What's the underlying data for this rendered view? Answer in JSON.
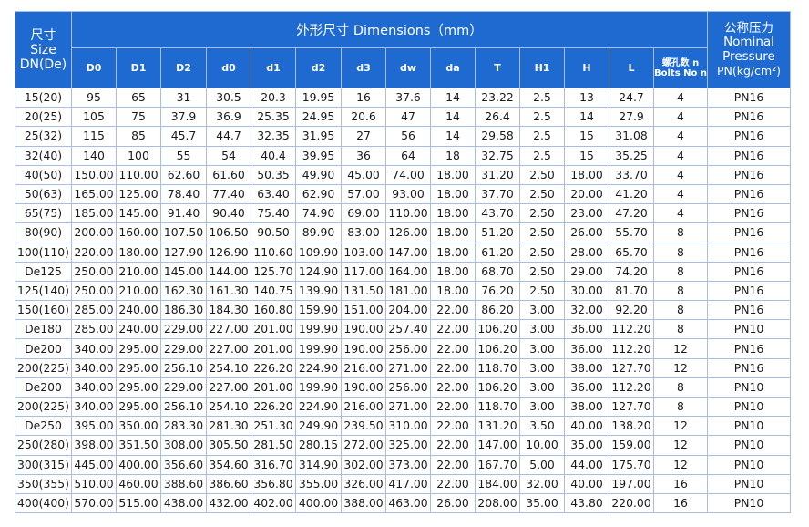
{
  "header": {
    "size": [
      "尺寸",
      "Size",
      "DN(De)"
    ],
    "dimensions": "外形尺寸 Dimensions（mm）",
    "pressure": [
      "公称压力",
      "Nominal",
      "Pressure",
      "PN(kg/cm²)"
    ],
    "columns": [
      "D0",
      "D1",
      "D2",
      "d0",
      "d1",
      "d2",
      "d3",
      "dw",
      "da",
      "T",
      "H1",
      "H",
      "L"
    ],
    "bolts": [
      "螺孔数 n",
      "Bolts No n"
    ]
  },
  "rows": [
    [
      "15(20)",
      "95",
      "65",
      "31",
      "30.5",
      "20.3",
      "19.95",
      "16",
      "37.6",
      "14",
      "23.22",
      "2.5",
      "13",
      "24.7",
      "4",
      "PN16"
    ],
    [
      "20(25)",
      "105",
      "75",
      "37.9",
      "36.9",
      "25.35",
      "24.95",
      "20.6",
      "47",
      "14",
      "26.4",
      "2.5",
      "14",
      "27.9",
      "4",
      "PN16"
    ],
    [
      "25(32)",
      "115",
      "85",
      "45.7",
      "44.7",
      "32.35",
      "31.95",
      "27",
      "56",
      "14",
      "29.58",
      "2.5",
      "15",
      "31.08",
      "4",
      "PN16"
    ],
    [
      "32(40)",
      "140",
      "100",
      "55",
      "54",
      "40.4",
      "39.95",
      "36",
      "64",
      "18",
      "32.75",
      "2.5",
      "15",
      "35.25",
      "4",
      "PN16"
    ],
    [
      "40(50)",
      "150.00",
      "110.00",
      "62.60",
      "61.60",
      "50.35",
      "49.90",
      "45.00",
      "74.00",
      "18.00",
      "31.20",
      "2.50",
      "18.00",
      "33.70",
      "4",
      "PN16"
    ],
    [
      "50(63)",
      "165.00",
      "125.00",
      "78.40",
      "77.40",
      "63.40",
      "62.90",
      "57.00",
      "93.00",
      "18.00",
      "37.70",
      "2.50",
      "20.00",
      "41.20",
      "4",
      "PN16"
    ],
    [
      "65(75)",
      "185.00",
      "145.00",
      "91.40",
      "90.40",
      "75.40",
      "74.90",
      "69.00",
      "110.00",
      "18.00",
      "43.70",
      "2.50",
      "23.00",
      "47.20",
      "4",
      "PN16"
    ],
    [
      "80(90)",
      "200.00",
      "160.00",
      "107.50",
      "106.50",
      "90.50",
      "89.90",
      "83.00",
      "126.00",
      "18.00",
      "51.20",
      "2.50",
      "26.00",
      "55.70",
      "8",
      "PN16"
    ],
    [
      "100(110)",
      "220.00",
      "180.00",
      "127.90",
      "126.90",
      "110.60",
      "109.90",
      "103.00",
      "147.00",
      "18.00",
      "61.20",
      "2.50",
      "28.00",
      "65.70",
      "8",
      "PN16"
    ],
    [
      "De125",
      "250.00",
      "210.00",
      "145.00",
      "144.00",
      "125.70",
      "124.90",
      "117.00",
      "164.00",
      "18.00",
      "68.70",
      "2.50",
      "29.00",
      "74.20",
      "8",
      "PN16"
    ],
    [
      "125(140)",
      "250.00",
      "210.00",
      "162.30",
      "161.30",
      "140.75",
      "139.90",
      "131.50",
      "181.00",
      "18.00",
      "76.20",
      "2.50",
      "30.00",
      "81.70",
      "8",
      "PN16"
    ],
    [
      "150(160)",
      "285.00",
      "240.00",
      "186.30",
      "184.30",
      "160.80",
      "159.90",
      "151.00",
      "204.00",
      "22.00",
      "86.20",
      "3.00",
      "32.00",
      "92.20",
      "8",
      "PN16"
    ],
    [
      "De180",
      "285.00",
      "240.00",
      "229.00",
      "227.00",
      "201.00",
      "199.90",
      "190.00",
      "257.40",
      "22.00",
      "106.20",
      "3.00",
      "36.00",
      "112.20",
      "8",
      "PN10"
    ],
    [
      "De200",
      "340.00",
      "295.00",
      "229.00",
      "227.00",
      "201.00",
      "199.90",
      "190.00",
      "256.00",
      "22.00",
      "106.20",
      "3.00",
      "36.00",
      "112.20",
      "12",
      "PN16"
    ],
    [
      "200(225)",
      "340.00",
      "295.00",
      "256.10",
      "254.10",
      "226.20",
      "224.90",
      "216.00",
      "271.00",
      "22.00",
      "118.70",
      "3.00",
      "38.00",
      "127.70",
      "12",
      "PN16"
    ],
    [
      "De200",
      "340.00",
      "295.00",
      "229.00",
      "227.00",
      "201.00",
      "199.90",
      "190.00",
      "256.00",
      "22.00",
      "106.20",
      "3.00",
      "36.00",
      "112.20",
      "8",
      "PN10"
    ],
    [
      "200(225)",
      "340.00",
      "295.00",
      "256.10",
      "254.10",
      "226.20",
      "224.90",
      "216.00",
      "271.00",
      "22.00",
      "118.70",
      "3.00",
      "38.00",
      "127.70",
      "8",
      "PN10"
    ],
    [
      "De250",
      "395.00",
      "350.00",
      "283.30",
      "281.30",
      "251.30",
      "249.90",
      "239.50",
      "310.00",
      "22.00",
      "131.20",
      "3.50",
      "40.00",
      "138.20",
      "12",
      "PN10"
    ],
    [
      "250(280)",
      "398.00",
      "351.50",
      "308.00",
      "305.50",
      "281.50",
      "280.15",
      "272.00",
      "325.00",
      "22.00",
      "147.00",
      "10.00",
      "35.00",
      "159.00",
      "12",
      "PN10"
    ],
    [
      "300(315)",
      "445.00",
      "400.00",
      "356.60",
      "354.60",
      "316.70",
      "314.90",
      "302.00",
      "373.00",
      "22.00",
      "167.70",
      "5.00",
      "44.00",
      "175.70",
      "12",
      "PN10"
    ],
    [
      "350(355)",
      "510.00",
      "460.00",
      "388.60",
      "386.60",
      "356.80",
      "355.00",
      "326.00",
      "417.00",
      "22.00",
      "184.00",
      "32.00",
      "40.00",
      "197.00",
      "16",
      "PN10"
    ],
    [
      "400(400)",
      "570.00",
      "515.00",
      "438.00",
      "432.00",
      "402.00",
      "400.00",
      "388.00",
      "463.00",
      "26.00",
      "208.00",
      "35.00",
      "43.80",
      "220.00",
      "16",
      "PN10"
    ]
  ]
}
